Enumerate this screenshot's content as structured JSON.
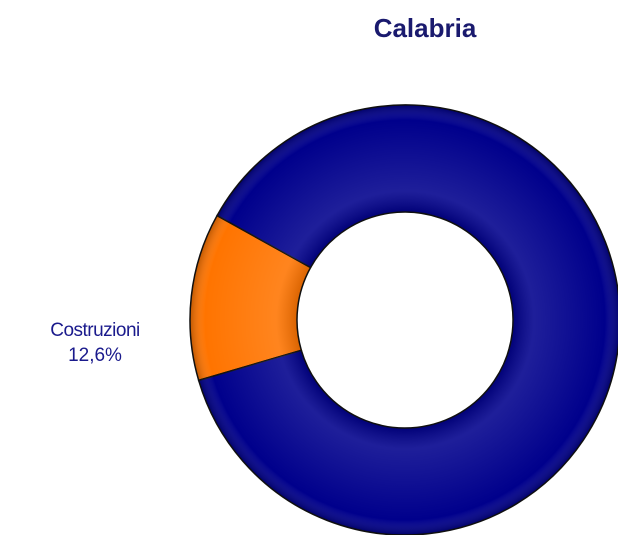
{
  "chart_data": {
    "type": "donut",
    "title": "Calabria",
    "categories": [
      "Costruzioni",
      null
    ],
    "values": [
      12.6,
      87.4
    ],
    "value_labels": [
      "12,6%",
      null
    ],
    "colors": [
      "#ff7400",
      "#00008c"
    ]
  }
}
